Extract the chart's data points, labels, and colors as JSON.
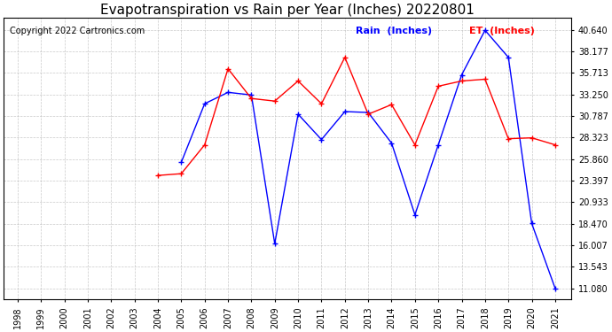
{
  "title": "Evapotranspiration vs Rain per Year (Inches) 20220801",
  "copyright": "Copyright 2022 Cartronics.com",
  "years": [
    1998,
    1999,
    2000,
    2001,
    2002,
    2003,
    2004,
    2005,
    2006,
    2007,
    2008,
    2009,
    2010,
    2011,
    2012,
    2013,
    2014,
    2015,
    2016,
    2017,
    2018,
    2019,
    2020,
    2021
  ],
  "rain": [
    null,
    null,
    null,
    null,
    null,
    null,
    null,
    25.5,
    32.2,
    33.5,
    33.2,
    16.2,
    31.0,
    28.1,
    31.3,
    31.2,
    27.7,
    19.5,
    27.5,
    35.5,
    40.6,
    37.5,
    18.5,
    11.1
  ],
  "et": [
    null,
    null,
    null,
    null,
    null,
    null,
    24.0,
    24.2,
    27.5,
    36.2,
    32.8,
    32.5,
    34.8,
    32.2,
    37.5,
    31.0,
    32.1,
    27.5,
    34.2,
    34.8,
    35.0,
    28.2,
    28.3,
    27.5
  ],
  "rain_color": "#0000ff",
  "et_color": "#ff0000",
  "bg_color": "#ffffff",
  "grid_color": "#bbbbbb",
  "yticks": [
    11.08,
    13.543,
    16.007,
    18.47,
    20.933,
    23.397,
    25.86,
    28.323,
    30.787,
    33.25,
    35.713,
    38.177,
    40.64
  ],
  "ylim": [
    9.8,
    42.0
  ],
  "legend_rain": "Rain  (Inches)",
  "legend_et": "ET  (Inches)",
  "title_fontsize": 11,
  "copyright_fontsize": 7,
  "tick_fontsize": 7,
  "figwidth": 6.9,
  "figheight": 3.75,
  "dpi": 100
}
